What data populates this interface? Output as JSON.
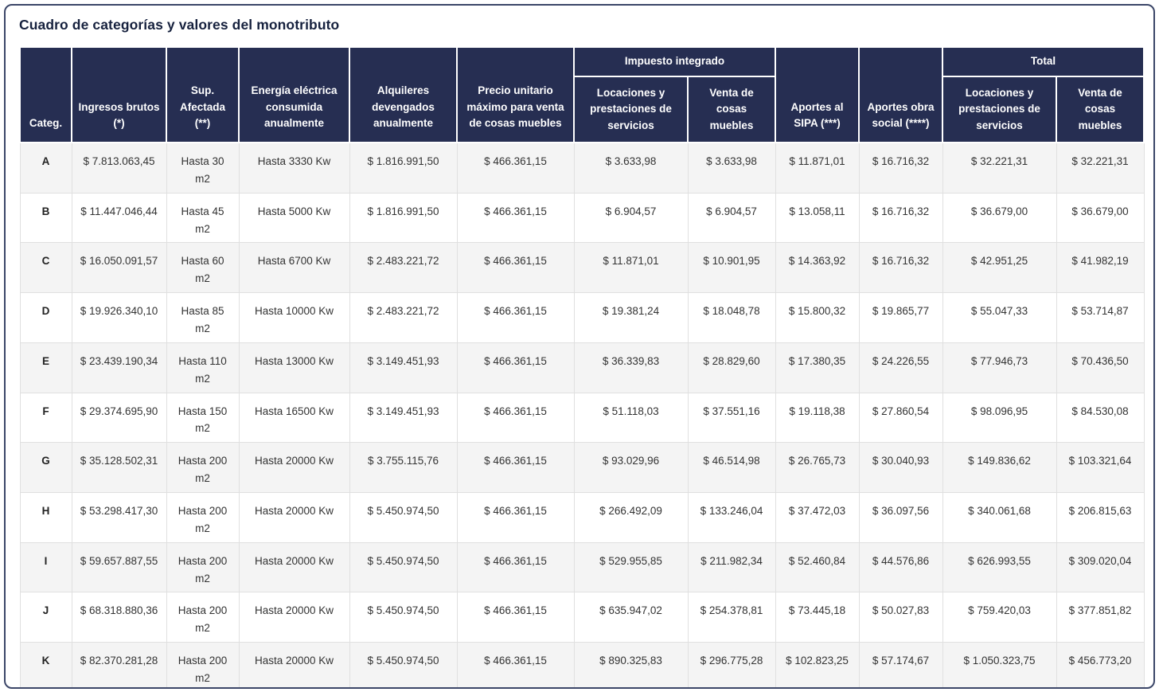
{
  "page": {
    "title": "Cuadro de categorías y valores del monotributo"
  },
  "table": {
    "header": {
      "categ": "Categ.",
      "ingresos_brutos": "Ingresos brutos (*)",
      "sup_afectada": "Sup. Afectada (**)",
      "energia": "Energía eléctrica consumida anualmente",
      "alquileres": "Alquileres devengados anualmente",
      "precio_unitario": "Precio unitario máximo para venta de cosas muebles",
      "impuesto_integrado": "Impuesto integrado",
      "ii_locaciones": "Locaciones y prestaciones de servicios",
      "ii_venta": "Venta de cosas muebles",
      "aportes_sipa": "Aportes al SIPA (***)",
      "aportes_obra_social": "Aportes obra social (****)",
      "total": "Total",
      "total_locaciones": "Locaciones y prestaciones de servicios",
      "total_venta": "Venta de cosas muebles"
    },
    "rows": [
      [
        "A",
        "$ 7.813.063,45",
        "Hasta 30 m2",
        "Hasta 3330 Kw",
        "$ 1.816.991,50",
        "$ 466.361,15",
        "$ 3.633,98",
        "$ 3.633,98",
        "$ 11.871,01",
        "$ 16.716,32",
        "$ 32.221,31",
        "$ 32.221,31"
      ],
      [
        "B",
        "$ 11.447.046,44",
        "Hasta 45 m2",
        "Hasta 5000 Kw",
        "$ 1.816.991,50",
        "$ 466.361,15",
        "$ 6.904,57",
        "$ 6.904,57",
        "$ 13.058,11",
        "$ 16.716,32",
        "$ 36.679,00",
        "$ 36.679,00"
      ],
      [
        "C",
        "$ 16.050.091,57",
        "Hasta 60 m2",
        "Hasta 6700 Kw",
        "$ 2.483.221,72",
        "$ 466.361,15",
        "$ 11.871,01",
        "$ 10.901,95",
        "$ 14.363,92",
        "$ 16.716,32",
        "$ 42.951,25",
        "$ 41.982,19"
      ],
      [
        "D",
        "$ 19.926.340,10",
        "Hasta 85 m2",
        "Hasta 10000 Kw",
        "$ 2.483.221,72",
        "$ 466.361,15",
        "$ 19.381,24",
        "$ 18.048,78",
        "$ 15.800,32",
        "$ 19.865,77",
        "$ 55.047,33",
        "$ 53.714,87"
      ],
      [
        "E",
        "$ 23.439.190,34",
        "Hasta 110 m2",
        "Hasta 13000 Kw",
        "$ 3.149.451,93",
        "$ 466.361,15",
        "$ 36.339,83",
        "$ 28.829,60",
        "$ 17.380,35",
        "$ 24.226,55",
        "$ 77.946,73",
        "$ 70.436,50"
      ],
      [
        "F",
        "$ 29.374.695,90",
        "Hasta 150 m2",
        "Hasta 16500 Kw",
        "$ 3.149.451,93",
        "$ 466.361,15",
        "$ 51.118,03",
        "$ 37.551,16",
        "$ 19.118,38",
        "$ 27.860,54",
        "$ 98.096,95",
        "$ 84.530,08"
      ],
      [
        "G",
        "$ 35.128.502,31",
        "Hasta 200 m2",
        "Hasta 20000 Kw",
        "$ 3.755.115,76",
        "$ 466.361,15",
        "$ 93.029,96",
        "$ 46.514,98",
        "$ 26.765,73",
        "$ 30.040,93",
        "$ 149.836,62",
        "$ 103.321,64"
      ],
      [
        "H",
        "$ 53.298.417,30",
        "Hasta 200 m2",
        "Hasta 20000 Kw",
        "$ 5.450.974,50",
        "$ 466.361,15",
        "$ 266.492,09",
        "$ 133.246,04",
        "$ 37.472,03",
        "$ 36.097,56",
        "$ 340.061,68",
        "$ 206.815,63"
      ],
      [
        "I",
        "$ 59.657.887,55",
        "Hasta 200 m2",
        "Hasta 20000 Kw",
        "$ 5.450.974,50",
        "$ 466.361,15",
        "$ 529.955,85",
        "$ 211.982,34",
        "$ 52.460,84",
        "$ 44.576,86",
        "$ 626.993,55",
        "$ 309.020,04"
      ],
      [
        "J",
        "$ 68.318.880,36",
        "Hasta 200 m2",
        "Hasta 20000 Kw",
        "$ 5.450.974,50",
        "$ 466.361,15",
        "$ 635.947,02",
        "$ 254.378,81",
        "$ 73.445,18",
        "$ 50.027,83",
        "$ 759.420,03",
        "$ 377.851,82"
      ],
      [
        "K",
        "$ 82.370.281,28",
        "Hasta 200 m2",
        "Hasta 20000 Kw",
        "$ 5.450.974,50",
        "$ 466.361,15",
        "$ 890.325,83",
        "$ 296.775,28",
        "$ 102.823,25",
        "$ 57.174,67",
        "$ 1.050.323,75",
        "$ 456.773,20"
      ]
    ]
  },
  "colors": {
    "header_bg": "#262e52",
    "header_text": "#ffffff",
    "row_bg": "#ffffff",
    "row_alt_bg": "#f4f4f4",
    "body_text": "#333333",
    "cell_border": "#e0e0e0",
    "page_border": "#3b4668",
    "title_text": "#16213e"
  }
}
